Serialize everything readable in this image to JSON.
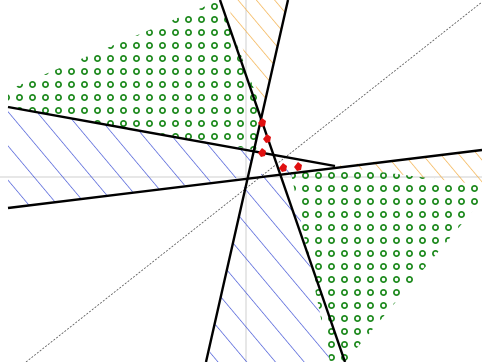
{
  "colors": {
    "background": "#ffffff",
    "axis": "#cfcfcf",
    "diagonal": "#555555",
    "boundary": "#000000",
    "blue_hatch": "#2b3fd1",
    "orange_hatch": "#f2a93b",
    "green_circles": "#1e8a1e",
    "red_marks": "#e01010"
  },
  "regions": [
    {
      "name": "blue-hatched-left",
      "pattern": "diagonal-lines",
      "color": "blue"
    },
    {
      "name": "blue-hatched-bottom",
      "pattern": "diagonal-lines",
      "color": "blue"
    },
    {
      "name": "green-dotted-top-left",
      "pattern": "open-circles",
      "color": "green"
    },
    {
      "name": "green-dotted-bottom-right",
      "pattern": "open-circles",
      "color": "green"
    },
    {
      "name": "orange-hatched-top",
      "pattern": "diagonal-lines",
      "color": "orange"
    },
    {
      "name": "orange-hatched-right",
      "pattern": "diagonal-lines",
      "color": "orange"
    }
  ],
  "boundary_lines": 4,
  "red_marks": 5
}
